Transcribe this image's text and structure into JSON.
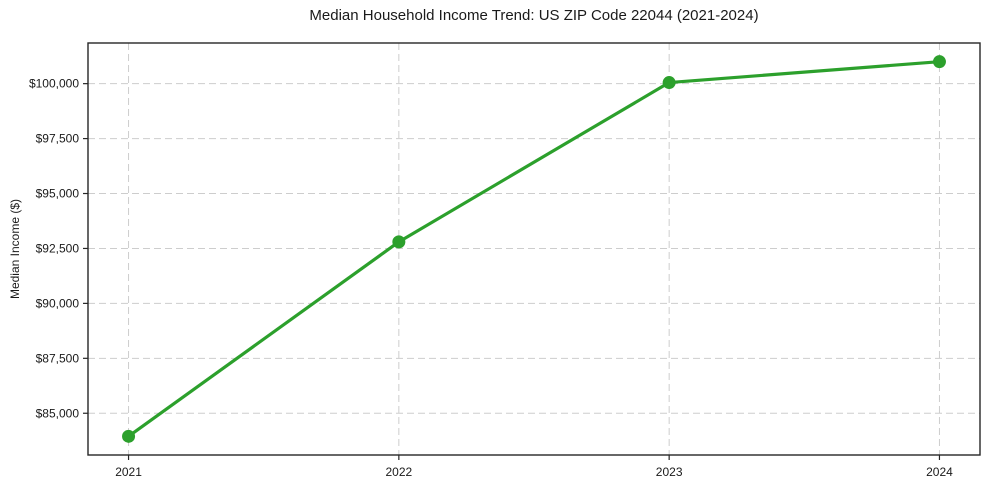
{
  "chart_data": {
    "type": "line",
    "title": "Median Household Income Trend: US ZIP Code 22044 (2021-2024)",
    "xlabel": "",
    "ylabel": "Median Income ($)",
    "x": [
      2021,
      2022,
      2023,
      2024
    ],
    "x_tick_labels": [
      "2021",
      "2022",
      "2023",
      "2024"
    ],
    "values": [
      83950,
      92800,
      100050,
      101000
    ],
    "series_name": "Median household income",
    "y_ticks": [
      85000,
      87500,
      90000,
      92500,
      95000,
      97500,
      100000
    ],
    "y_tick_labels": [
      "$85,000",
      "$87,500",
      "$90,000",
      "$92,500",
      "$95,000",
      "$97,500",
      "$100,000"
    ],
    "ylim": [
      83100,
      101850
    ],
    "xlim": [
      2020.85,
      2024.15
    ],
    "grid": true,
    "grid_style": "dashed",
    "legend": "none",
    "line_color": "#2ca02c",
    "marker": "circle",
    "grid_color": "#cdcdcd",
    "axis_color": "#262626",
    "text_color": "#1a1a1a",
    "background_color": "#ffffff"
  }
}
